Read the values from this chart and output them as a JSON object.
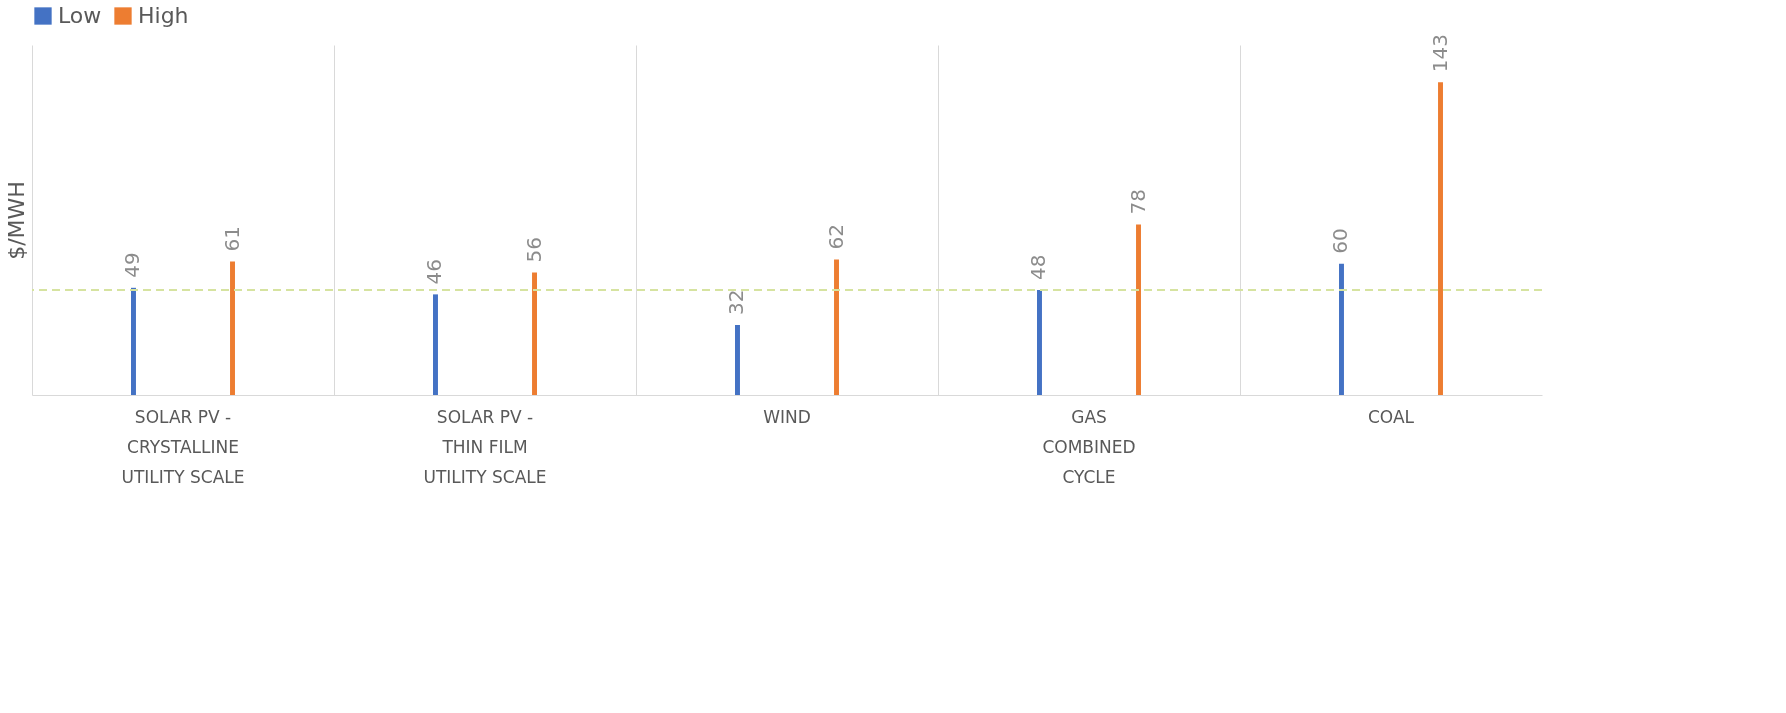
{
  "chart_data": {
    "type": "bar",
    "ylabel": "$/MWH",
    "categories": [
      "SOLAR PV -\nCRYSTALLINE\nUTILITY SCALE",
      "SOLAR PV -\nTHIN FILM\nUTILITY SCALE",
      "WIND",
      "GAS\nCOMBINED\nCYCLE",
      "COAL"
    ],
    "series": [
      {
        "name": "Low",
        "color": "#4472c4",
        "values": [
          49,
          46,
          32,
          48,
          60
        ]
      },
      {
        "name": "High",
        "color": "#ed7d31",
        "values": [
          61,
          56,
          62,
          78,
          143
        ]
      }
    ],
    "ylim": [
      0,
      160
    ],
    "data_labels": true,
    "grid": "x",
    "legend": "top",
    "ref_lines": [
      {
        "axis": "y",
        "value": 48,
        "color": "#d6e3a0",
        "line_style": "dashed"
      }
    ]
  }
}
